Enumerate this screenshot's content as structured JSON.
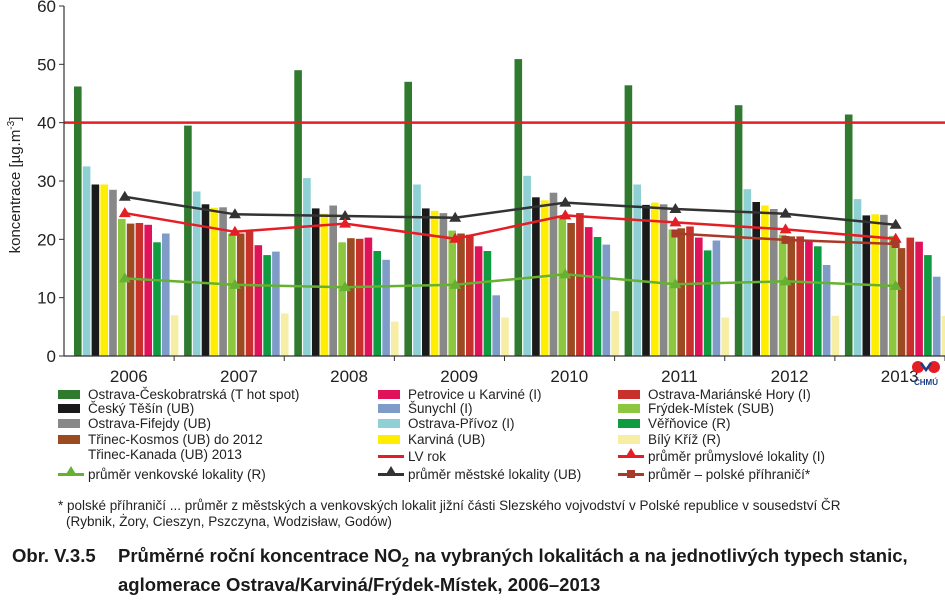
{
  "chart_data": {
    "type": "bar",
    "ylabel": "koncentrace [µg.m-3]",
    "ylabel_unit_base": "koncentrace [µg.m",
    "ylabel_unit_exp": "-3",
    "ylabel_unit_end": "]",
    "ylim": [
      0,
      60
    ],
    "yticks": [
      0,
      10,
      20,
      30,
      40,
      50,
      60
    ],
    "grid": false,
    "categories": [
      "2006",
      "2007",
      "2008",
      "2009",
      "2010",
      "2011",
      "2012",
      "2013"
    ],
    "limit_line": {
      "name": "LV rok",
      "value": 40,
      "color": "#e41e25"
    },
    "bar_series": [
      {
        "name": "Ostrava-Českobratrská (T hot spot)",
        "color": "#2f7a2f",
        "values": [
          46.2,
          39.5,
          49,
          47,
          50.9,
          46.4,
          43,
          41.4
        ]
      },
      {
        "name": "Český Těšín (UB)",
        "color": "#1a1a1a",
        "values": [
          29.4,
          26,
          25.3,
          25.3,
          27.2,
          25.9,
          26.4,
          24.1
        ]
      },
      {
        "name": "Ostrava-Fifejdy (UB)",
        "color": "#888888",
        "values": [
          28.5,
          25.5,
          25.8,
          24.5,
          28,
          26,
          25.2,
          24.2
        ]
      },
      {
        "name": "Třinec-Kosmos (UB) do 2012 / Třinec-Kanada (UB) 2013",
        "color": "#9b4a22",
        "values": [
          22.7,
          21,
          20.2,
          21,
          22.8,
          21.9,
          20.5,
          18.5
        ]
      },
      {
        "name": "Petrovice u Karviné (I)",
        "color": "#e0125a",
        "values": [
          22.5,
          19,
          20.3,
          18.8,
          22.1,
          20.3,
          19.9,
          19.6
        ]
      },
      {
        "name": "Šunychl (I)",
        "color": "#7f9cc9",
        "values": [
          21,
          17.9,
          16.5,
          10.4,
          19.1,
          19.8,
          15.6,
          13.6
        ]
      },
      {
        "name": "Ostrava-Přívoz (I)",
        "color": "#8ed0d4",
        "values": [
          32.5,
          28.2,
          30.5,
          29.4,
          30.9,
          29.4,
          28.6,
          26.9
        ]
      },
      {
        "name": "Karviná (UB)",
        "color": "#ffee00",
        "values": [
          29.4,
          25.4,
          24.4,
          24.9,
          26.7,
          26.3,
          25.8,
          24.3
        ]
      },
      {
        "name": "Bílý Kříž (R)",
        "color": "#f7eea6",
        "values": [
          7,
          7.3,
          5.9,
          6.6,
          7.7,
          6.6,
          6.9,
          6.9
        ]
      },
      {
        "name": "Ostrava-Mariánské Hory (I)",
        "color": "#c8302c",
        "values": [
          22.8,
          21.5,
          20.1,
          20.8,
          24.5,
          22.2,
          20.5,
          20.3
        ]
      },
      {
        "name": "Frýdek-Místek (SUB)",
        "color": "#8dc63f",
        "values": [
          23.5,
          21,
          19.5,
          21.5,
          23.9,
          21.7,
          20.8,
          20.6
        ]
      },
      {
        "name": "Věřňovice (R)",
        "color": "#0f9b3f",
        "values": [
          19.5,
          17.3,
          18,
          18,
          20.4,
          18.1,
          18.8,
          17.3
        ]
      }
    ],
    "bar_order": [
      0,
      6,
      1,
      7,
      2,
      10,
      3,
      9,
      4,
      11,
      5,
      8
    ],
    "line_series": [
      {
        "name": "průměr venkovské lokality (R)",
        "color": "#66b132",
        "marker": "triangle",
        "values": [
          13.3,
          12.2,
          11.8,
          12.2,
          14,
          12.3,
          12.8,
          12
        ]
      },
      {
        "name": "průměr městské lokality (UB)",
        "color": "#333333",
        "marker": "triangle",
        "values": [
          27.3,
          24.3,
          24,
          23.7,
          26.3,
          25.2,
          24.4,
          22.5
        ]
      },
      {
        "name": "průměr průmyslové lokality (I)",
        "color": "#e41e25",
        "marker": "triangle",
        "values": [
          24.5,
          21.3,
          22.7,
          20.1,
          24.1,
          22.9,
          21.7,
          20.1
        ]
      },
      {
        "name": "průměr – polské příhraničí*",
        "color": "#a83a2a",
        "marker": "square",
        "values": [
          null,
          null,
          null,
          null,
          null,
          21,
          19.9,
          19.2
        ],
        "x_offsets": [
          0,
          0,
          0,
          0,
          0,
          0,
          0,
          0
        ]
      }
    ]
  },
  "legend_columns": [
    [
      "Ostrava-Českobratrská (T hot spot)",
      "Český Těšín (UB)",
      "Ostrava-Fifejdy (UB)",
      "Třinec-Kosmos (UB) do 2012",
      "Třinec-Kanada (UB) 2013",
      "průměr venkovské lokality (R)"
    ],
    [
      "Petrovice u Karviné (I)",
      "Šunychl (I)",
      "Ostrava-Přívoz (I)",
      "Karviná (UB)",
      "LV rok",
      "průměr městské lokality (UB)"
    ],
    [
      "Ostrava-Mariánské Hory (I)",
      "Frýdek-Místek (SUB)",
      "Věřňovice (R)",
      "Bílý Kříž (R)",
      "průměr průmyslové lokality (I)",
      "průměr – polské příhraničí*"
    ]
  ],
  "note": {
    "line1": "* polské příhraničí ... průměr z městských a venkovských lokalit jižní části Slezského vojvodství v Polské republice v sousedství ČR",
    "line2": "(Rybnik, Żory, Cieszyn, Pszczyna, Wodzisław, Godów)"
  },
  "caption": {
    "number": "Obr. V.3.5",
    "text_before_sub": "Průměrné roční koncentrace NO",
    "subscript": "2",
    "text_after_sub": " na vybraných lokalitách a na jednotlivých typech stanic, aglomerace Ostrava/Karviná/Frýdek-Místek, 2006–2013"
  },
  "logo": {
    "text": "ČHMÚ",
    "color": "#1d3f8a",
    "dot_color": "#e41e25"
  }
}
